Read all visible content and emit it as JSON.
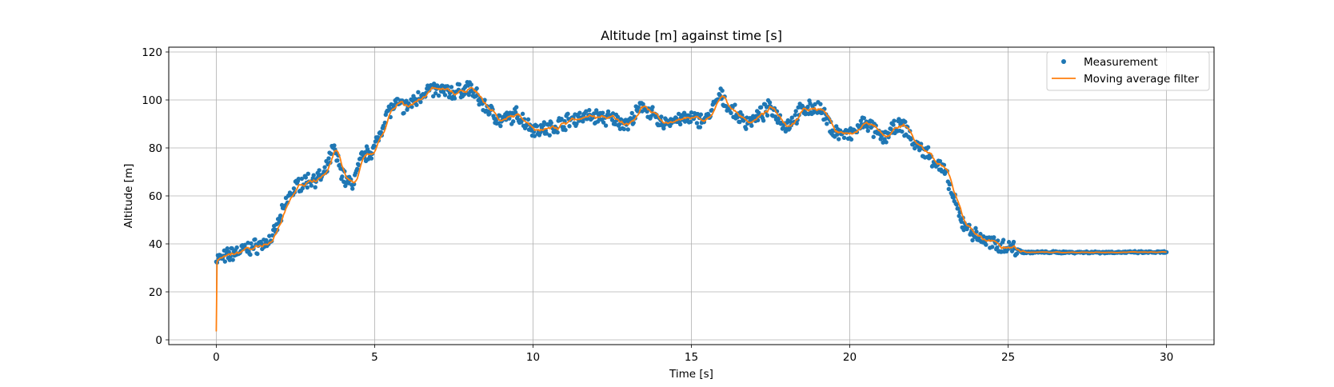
{
  "chart_data": {
    "type": "scatter",
    "title": "Altitude [m] against time [s]",
    "xlabel": "Time [s]",
    "ylabel": "Altitude [m]",
    "xlim": [
      -1.5,
      31.5
    ],
    "ylim": [
      -2,
      122
    ],
    "xticks": [
      0,
      5,
      10,
      15,
      20,
      25,
      30
    ],
    "yticks": [
      0,
      20,
      40,
      60,
      80,
      100,
      120
    ],
    "grid": true,
    "legend_position": "top-right",
    "sample_step": 0.025,
    "series": [
      {
        "name": "Measurement",
        "kind": "scatter",
        "color": "#1f77b4",
        "x": [
          0,
          0.2,
          0.5,
          1.0,
          1.5,
          1.8,
          2.0,
          2.3,
          2.6,
          3.0,
          3.4,
          3.7,
          3.9,
          4.1,
          4.3,
          4.6,
          5.0,
          5.4,
          5.7,
          6.0,
          6.3,
          6.6,
          7.0,
          7.5,
          8.0,
          8.5,
          9.0,
          9.5,
          10.0,
          10.5,
          11.0,
          11.5,
          12.0,
          12.5,
          13.0,
          13.5,
          14.0,
          14.5,
          15.0,
          15.5,
          15.9,
          16.3,
          16.7,
          17.0,
          17.5,
          18.0,
          18.5,
          19.0,
          19.5,
          20.0,
          20.5,
          21.0,
          21.5,
          21.8,
          22.0,
          22.5,
          23.0,
          23.5,
          24.0,
          24.5,
          25.0,
          25.5,
          30.0
        ],
        "y": [
          34,
          34,
          36,
          38,
          40,
          43,
          50,
          60,
          65,
          67,
          68,
          80,
          72,
          66,
          65,
          76,
          80,
          95,
          98,
          97,
          100,
          104,
          104,
          103,
          105,
          97,
          91,
          94,
          88,
          88,
          91,
          93,
          93,
          92,
          90,
          98,
          90,
          92,
          92,
          92,
          102,
          95,
          91,
          92,
          97,
          89,
          96,
          97,
          87,
          85,
          91,
          84,
          89,
          88,
          82,
          77,
          70,
          50,
          43,
          40,
          39,
          36.5,
          36.5
        ],
        "noise": 2.5
      },
      {
        "name": "Moving average filter",
        "kind": "line",
        "color": "#ff7f0e",
        "start_value": 3.5,
        "window": 0.2
      }
    ]
  }
}
